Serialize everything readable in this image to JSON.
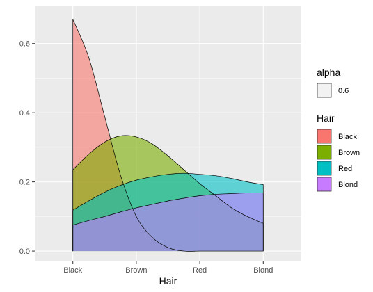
{
  "chart_data": {
    "type": "area",
    "xlabel": "Hair",
    "ylabel": "",
    "categories": [
      "Black",
      "Brown",
      "Red",
      "Blond"
    ],
    "xlim": [
      0.4,
      4.6
    ],
    "ylim": [
      -0.03,
      0.71
    ],
    "yticks": [
      0.0,
      0.2,
      0.4,
      0.6
    ],
    "ytick_labels": [
      "0.0",
      "0.2",
      "0.4",
      "0.6"
    ],
    "grid": true,
    "legend_placement": "right",
    "series": [
      {
        "name": "Black",
        "color": "#F8766D",
        "points": [
          [
            1.0,
            0.67
          ],
          [
            1.25,
            0.56
          ],
          [
            1.5,
            0.39
          ],
          [
            1.75,
            0.22
          ],
          [
            2.0,
            0.1
          ],
          [
            2.25,
            0.04
          ],
          [
            2.5,
            0.01
          ],
          [
            2.75,
            0.0
          ],
          [
            3.0,
            0.0
          ],
          [
            3.25,
            0.0
          ],
          [
            3.5,
            0.0
          ],
          [
            3.75,
            0.0
          ],
          [
            4.0,
            0.0
          ]
        ]
      },
      {
        "name": "Brown",
        "color": "#7CAE00",
        "points": [
          [
            1.0,
            0.235
          ],
          [
            1.25,
            0.28
          ],
          [
            1.5,
            0.315
          ],
          [
            1.75,
            0.333
          ],
          [
            2.0,
            0.33
          ],
          [
            2.25,
            0.31
          ],
          [
            2.5,
            0.275
          ],
          [
            2.75,
            0.235
          ],
          [
            3.0,
            0.195
          ],
          [
            3.25,
            0.16
          ],
          [
            3.5,
            0.125
          ],
          [
            3.75,
            0.1
          ],
          [
            4.0,
            0.08
          ]
        ]
      },
      {
        "name": "Red",
        "color": "#00BFC4",
        "points": [
          [
            1.0,
            0.118
          ],
          [
            1.25,
            0.145
          ],
          [
            1.5,
            0.17
          ],
          [
            1.75,
            0.19
          ],
          [
            2.0,
            0.205
          ],
          [
            2.25,
            0.215
          ],
          [
            2.5,
            0.222
          ],
          [
            2.75,
            0.225
          ],
          [
            3.0,
            0.222
          ],
          [
            3.25,
            0.218
          ],
          [
            3.5,
            0.21
          ],
          [
            3.75,
            0.2
          ],
          [
            4.0,
            0.192
          ]
        ]
      },
      {
        "name": "Blond",
        "color": "#C77CFF",
        "points": [
          [
            1.0,
            0.075
          ],
          [
            1.25,
            0.088
          ],
          [
            1.5,
            0.1
          ],
          [
            1.75,
            0.113
          ],
          [
            2.0,
            0.125
          ],
          [
            2.25,
            0.135
          ],
          [
            2.5,
            0.145
          ],
          [
            2.75,
            0.153
          ],
          [
            3.0,
            0.16
          ],
          [
            3.25,
            0.164
          ],
          [
            3.5,
            0.166
          ],
          [
            3.75,
            0.168
          ],
          [
            4.0,
            0.168
          ]
        ]
      }
    ],
    "fill_alpha": 0.6,
    "legends": [
      {
        "title": "alpha",
        "entries": [
          {
            "label": "0.6",
            "color": "#F2F2F2"
          }
        ]
      },
      {
        "title": "Hair",
        "entries": [
          {
            "label": "Black",
            "color": "#F8766D"
          },
          {
            "label": "Brown",
            "color": "#7CAE00"
          },
          {
            "label": "Red",
            "color": "#00BFC4"
          },
          {
            "label": "Blond",
            "color": "#C77CFF"
          }
        ]
      }
    ]
  }
}
